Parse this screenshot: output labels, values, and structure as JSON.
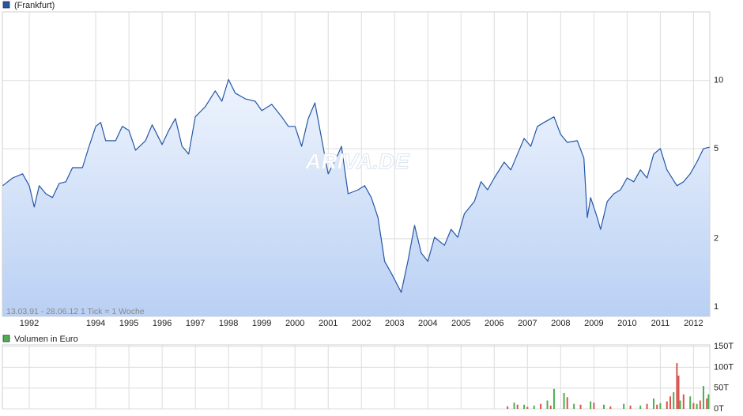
{
  "chart_data": [
    {
      "type": "line",
      "log_scale": true,
      "grid": true,
      "annotation": "13.03.91 - 28.06.12   1 Tick = 1 Woche",
      "watermark": "ARIVA.DE",
      "xlim": [
        1991.19,
        2012.49
      ],
      "xticks": [
        1992,
        1994,
        1995,
        1996,
        1997,
        1998,
        1999,
        2000,
        2001,
        2002,
        2003,
        2004,
        2005,
        2006,
        2007,
        2008,
        2009,
        2010,
        2011,
        2012
      ],
      "ylim": [
        0.908,
        20.1
      ],
      "yticks": [
        1,
        2,
        5,
        10
      ],
      "series": [
        {
          "name": "(Frankfurt)",
          "color": "#2456a8",
          "x": [
            1991.2,
            1991.5,
            1991.8,
            1992.0,
            1992.15,
            1992.3,
            1992.5,
            1992.7,
            1992.9,
            1993.1,
            1993.3,
            1993.6,
            1993.8,
            1994.0,
            1994.15,
            1994.3,
            1994.6,
            1994.8,
            1995.0,
            1995.2,
            1995.5,
            1995.7,
            1996.0,
            1996.2,
            1996.4,
            1996.6,
            1996.8,
            1997.0,
            1997.3,
            1997.6,
            1997.8,
            1998.0,
            1998.2,
            1998.5,
            1998.8,
            1999.0,
            1999.3,
            1999.6,
            1999.8,
            2000.0,
            2000.2,
            2000.4,
            2000.6,
            2000.8,
            2001.0,
            2001.3,
            2001.4,
            2001.6,
            2001.9,
            2002.1,
            2002.3,
            2002.5,
            2002.7,
            2002.9,
            2003.2,
            2003.4,
            2003.6,
            2003.8,
            2004.0,
            2004.2,
            2004.5,
            2004.7,
            2004.9,
            2005.1,
            2005.4,
            2005.6,
            2005.8,
            2006.0,
            2006.3,
            2006.5,
            2006.7,
            2006.9,
            2007.1,
            2007.3,
            2007.5,
            2007.8,
            2008.0,
            2008.2,
            2008.5,
            2008.7,
            2008.8,
            2008.9,
            2009.1,
            2009.2,
            2009.4,
            2009.6,
            2009.8,
            2010.0,
            2010.2,
            2010.4,
            2010.6,
            2010.8,
            2011.0,
            2011.2,
            2011.5,
            2011.7,
            2011.9,
            2012.1,
            2012.3,
            2012.48
          ],
          "values": [
            3.43,
            3.71,
            3.87,
            3.43,
            2.76,
            3.43,
            3.16,
            3.04,
            3.51,
            3.57,
            4.12,
            4.12,
            5.12,
            6.27,
            6.53,
            5.42,
            5.42,
            6.27,
            6.02,
            4.92,
            5.42,
            6.37,
            5.21,
            6.02,
            6.79,
            5.12,
            4.73,
            6.91,
            7.66,
            9.0,
            8.1,
            10.1,
            8.8,
            8.3,
            8.1,
            7.36,
            7.85,
            6.91,
            6.27,
            6.27,
            5.12,
            6.79,
            7.97,
            5.55,
            3.87,
            4.73,
            5.12,
            3.16,
            3.29,
            3.43,
            3.04,
            2.48,
            1.59,
            1.41,
            1.16,
            1.59,
            2.29,
            1.73,
            1.59,
            2.03,
            1.87,
            2.2,
            2.03,
            2.58,
            2.92,
            3.57,
            3.29,
            3.71,
            4.36,
            4.03,
            4.73,
            5.55,
            5.12,
            6.27,
            6.53,
            6.91,
            5.78,
            5.33,
            5.42,
            4.54,
            2.48,
            3.04,
            2.48,
            2.2,
            2.92,
            3.16,
            3.29,
            3.71,
            3.57,
            4.03,
            3.71,
            4.73,
            5.0,
            4.03,
            3.43,
            3.57,
            3.87,
            4.36,
            5.0,
            5.07
          ]
        }
      ]
    },
    {
      "type": "bar",
      "grid": true,
      "xlim": [
        1991.19,
        2012.49
      ],
      "ylim": [
        0,
        154
      ],
      "yticks": [
        {
          "value": 0,
          "label": "0T"
        },
        {
          "value": 50,
          "label": "50T"
        },
        {
          "value": 100,
          "label": "100T"
        },
        {
          "value": 150,
          "label": "150T"
        }
      ],
      "series": [
        {
          "name": "Volumen in Euro",
          "color": "#4caf50",
          "x": [
            2006.4,
            2006.6,
            2006.7,
            2006.9,
            2007.0,
            2007.2,
            2007.4,
            2007.6,
            2007.7,
            2007.8,
            2008.1,
            2008.2,
            2008.4,
            2008.6,
            2008.9,
            2009.0,
            2009.3,
            2009.5,
            2009.9,
            2010.1,
            2010.4,
            2010.6,
            2010.8,
            2010.9,
            2011.0,
            2011.2,
            2011.3,
            2011.4,
            2011.5,
            2011.55,
            2011.6,
            2011.7,
            2011.9,
            2012.0,
            2012.1,
            2012.2,
            2012.3,
            2012.4,
            2012.45
          ],
          "values": [
            6,
            15,
            10,
            10,
            5,
            8,
            12,
            20,
            8,
            48,
            38,
            28,
            12,
            10,
            18,
            15,
            10,
            6,
            12,
            8,
            8,
            12,
            25,
            10,
            14,
            18,
            30,
            40,
            110,
            80,
            20,
            35,
            30,
            14,
            12,
            20,
            55,
            25,
            35
          ],
          "colors": [
            "#d9534f",
            "#4caf50",
            "#d9534f",
            "#4caf50",
            "#d9534f",
            "#4caf50",
            "#d9534f",
            "#4caf50",
            "#d9534f",
            "#4caf50",
            "#4caf50",
            "#d9534f",
            "#4caf50",
            "#d9534f",
            "#4caf50",
            "#d9534f",
            "#4caf50",
            "#d9534f",
            "#4caf50",
            "#d9534f",
            "#4caf50",
            "#d9534f",
            "#4caf50",
            "#d9534f",
            "#4caf50",
            "#d9534f",
            "#d9534f",
            "#4caf50",
            "#d9534f",
            "#d9534f",
            "#4caf50",
            "#d9534f",
            "#4caf50",
            "#d9534f",
            "#4caf50",
            "#d9534f",
            "#4caf50",
            "#d9534f",
            "#4caf50"
          ]
        }
      ]
    }
  ]
}
